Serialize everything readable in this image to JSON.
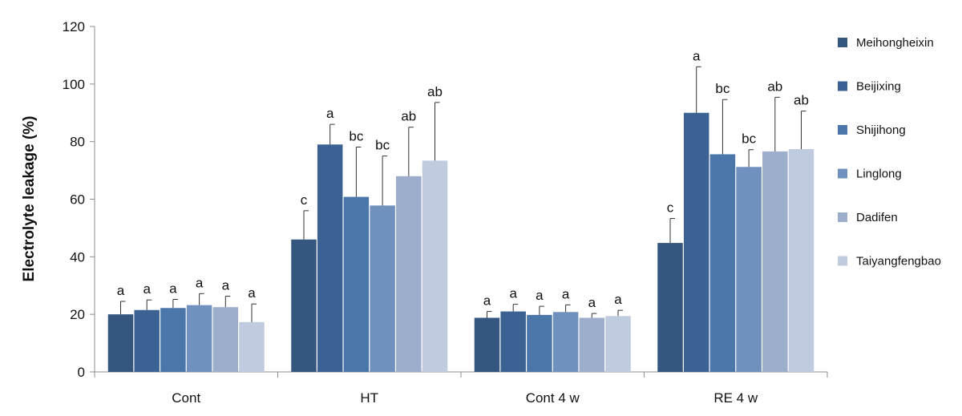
{
  "chart_data": {
    "type": "bar",
    "title": "",
    "xlabel": "",
    "ylabel": "Electrolyte leakage (%)",
    "ylim": [
      0,
      120
    ],
    "yticks": [
      0,
      20,
      40,
      60,
      80,
      100,
      120
    ],
    "grid": false,
    "legend_position": "right",
    "categories": [
      "Cont",
      "HT",
      "Cont 4 w",
      "RE 4 w"
    ],
    "series": [
      {
        "name": "Meihongheixin",
        "color": "#35577f",
        "values": [
          20,
          46,
          18.8,
          44.8
        ],
        "errors": [
          4.5,
          10,
          2.2,
          8.5
        ],
        "letters": [
          "a",
          "c",
          "a",
          "c"
        ]
      },
      {
        "name": "Beijixing",
        "color": "#3c6294",
        "values": [
          21.5,
          79,
          21,
          90
        ],
        "errors": [
          3.5,
          7,
          2.5,
          16
        ],
        "letters": [
          "a",
          "a",
          "a",
          "a"
        ]
      },
      {
        "name": "Shijihong",
        "color": "#4a76aa",
        "values": [
          22.2,
          60.8,
          19.8,
          75.6
        ],
        "errors": [
          3,
          17.3,
          3,
          19
        ],
        "letters": [
          "a",
          "bc",
          "a",
          "bc"
        ]
      },
      {
        "name": "Linglong",
        "color": "#7090bd",
        "values": [
          23.2,
          57.8,
          20.8,
          71.2
        ],
        "errors": [
          4,
          17.2,
          2.5,
          6
        ],
        "letters": [
          "a",
          "bc",
          "a",
          "bc"
        ]
      },
      {
        "name": "Dadifen",
        "color": "#9daecd",
        "values": [
          22.5,
          68,
          18.8,
          76.6
        ],
        "errors": [
          3.8,
          17,
          1.5,
          18.8
        ],
        "letters": [
          "a",
          "ab",
          "a",
          "ab"
        ]
      },
      {
        "name": "Taiyangfengbao",
        "color": "#c1cbe0",
        "values": [
          17.3,
          73.4,
          19.4,
          77.4
        ],
        "errors": [
          6.3,
          20.2,
          2,
          13.2
        ],
        "letters": [
          "a",
          "ab",
          "a",
          "ab"
        ]
      }
    ]
  }
}
